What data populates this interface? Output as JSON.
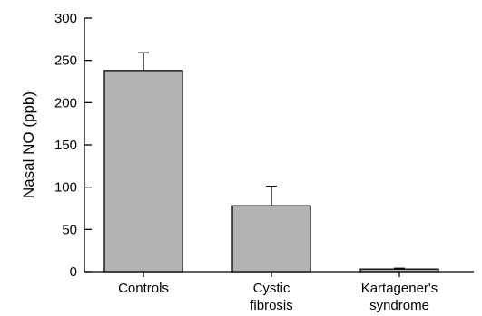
{
  "chart_data": {
    "type": "bar",
    "title": "",
    "xlabel": "",
    "ylabel": "Nasal NO (ppb)",
    "ylim": [
      0,
      300
    ],
    "yticks": [
      0,
      50,
      100,
      150,
      200,
      250,
      300
    ],
    "grid": false,
    "legend": "none",
    "categories": [
      [
        "Controls"
      ],
      [
        "Cystic",
        "fibrosis"
      ],
      [
        "Kartagener's",
        "syndrome"
      ]
    ],
    "values": [
      238,
      78,
      3
    ],
    "errors": [
      21,
      23,
      1
    ],
    "colors": {
      "bar_fill": "#b3b3b3",
      "bar_stroke": "#000000",
      "axis": "#000000"
    }
  }
}
